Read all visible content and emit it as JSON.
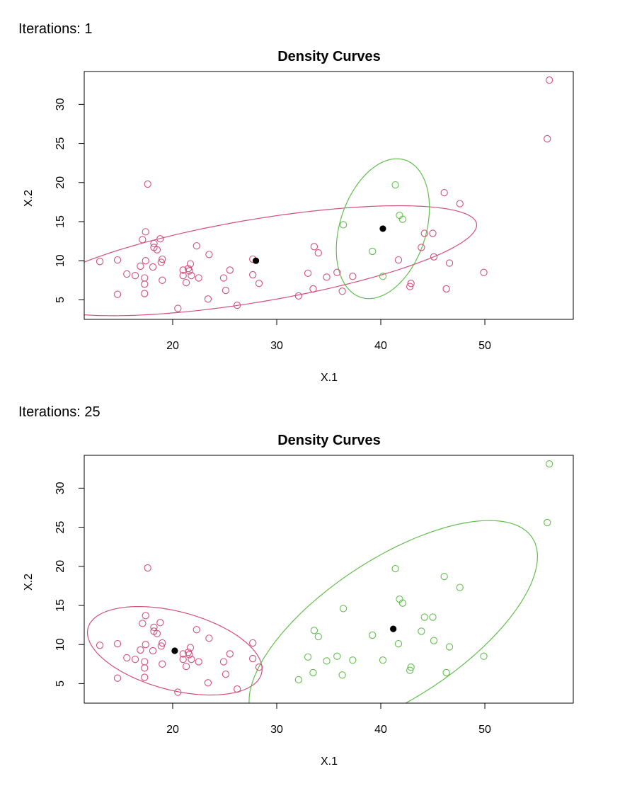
{
  "colors": {
    "cluster1": "#d2507a",
    "cluster2": "#63be4e",
    "center": "#000000"
  },
  "chart_data": [
    {
      "type": "scatter",
      "caption": "Iterations: 1",
      "title": "Density Curves",
      "xlabel": "X.1",
      "ylabel": "X.2",
      "xlim": [
        11.5,
        58.5
      ],
      "ylim": [
        2.5,
        34.2
      ],
      "xticks": [
        20,
        30,
        40,
        50
      ],
      "yticks": [
        5,
        10,
        15,
        20,
        25,
        30
      ],
      "grid": false,
      "series": [
        {
          "color": "#d2507a",
          "points": [
            [
              13.0,
              9.9
            ],
            [
              14.7,
              10.1
            ],
            [
              14.7,
              5.7
            ],
            [
              15.6,
              8.3
            ],
            [
              16.4,
              8.1
            ],
            [
              16.9,
              9.3
            ],
            [
              17.1,
              12.7
            ],
            [
              17.3,
              7.0
            ],
            [
              17.3,
              7.8
            ],
            [
              17.3,
              5.8
            ],
            [
              17.4,
              10.0
            ],
            [
              17.4,
              13.7
            ],
            [
              17.6,
              19.8
            ],
            [
              18.1,
              9.2
            ],
            [
              18.2,
              12.2
            ],
            [
              18.2,
              11.7
            ],
            [
              18.5,
              11.4
            ],
            [
              18.8,
              12.8
            ],
            [
              18.9,
              9.8
            ],
            [
              19.0,
              10.2
            ],
            [
              19.0,
              7.5
            ],
            [
              20.5,
              3.9
            ],
            [
              21.0,
              8.8
            ],
            [
              21.0,
              8.1
            ],
            [
              21.3,
              7.2
            ],
            [
              21.5,
              9.0
            ],
            [
              21.6,
              8.7
            ],
            [
              21.7,
              9.6
            ],
            [
              21.8,
              8.1
            ],
            [
              22.3,
              11.9
            ],
            [
              22.5,
              7.8
            ],
            [
              23.4,
              5.1
            ],
            [
              23.5,
              10.8
            ],
            [
              24.9,
              7.8
            ],
            [
              25.1,
              6.2
            ],
            [
              25.5,
              8.8
            ],
            [
              26.2,
              4.3
            ],
            [
              27.7,
              10.2
            ],
            [
              27.7,
              8.2
            ],
            [
              28.3,
              7.1
            ],
            [
              32.1,
              5.5
            ],
            [
              33.0,
              8.4
            ],
            [
              33.5,
              6.4
            ],
            [
              33.6,
              11.8
            ],
            [
              34.0,
              11.0
            ],
            [
              34.8,
              7.9
            ],
            [
              35.8,
              8.5
            ],
            [
              36.3,
              6.1
            ],
            [
              37.3,
              8.0
            ],
            [
              41.7,
              10.1
            ],
            [
              42.8,
              6.7
            ],
            [
              42.9,
              7.1
            ],
            [
              43.9,
              11.7
            ],
            [
              44.2,
              13.5
            ],
            [
              45.0,
              13.5
            ],
            [
              45.1,
              10.5
            ],
            [
              46.1,
              18.7
            ],
            [
              46.3,
              6.4
            ],
            [
              46.6,
              9.7
            ],
            [
              47.6,
              17.3
            ],
            [
              49.9,
              8.5
            ],
            [
              56.0,
              25.6
            ],
            [
              56.2,
              33.1
            ]
          ]
        },
        {
          "color": "#63be4e",
          "points": [
            [
              36.4,
              14.6
            ],
            [
              39.2,
              11.2
            ],
            [
              40.2,
              8.0
            ],
            [
              41.4,
              19.7
            ],
            [
              41.8,
              15.8
            ],
            [
              42.1,
              15.3
            ]
          ]
        }
      ],
      "centers": [
        [
          28.0,
          10.0
        ],
        [
          40.2,
          14.1
        ]
      ],
      "ellipses": [
        {
          "color": "#d2507a",
          "center": [
            28.0,
            10.0
          ],
          "cov": [
            [
              200,
              43
            ],
            [
              43,
              22
            ]
          ],
          "k": 1.5
        },
        {
          "color": "#63be4e",
          "center": [
            40.2,
            14.1
          ],
          "cov": [
            [
              5,
              3
            ],
            [
              3,
              20
            ]
          ],
          "k": 2.0
        }
      ]
    },
    {
      "type": "scatter",
      "caption": "Iterations: 25",
      "title": "Density Curves",
      "xlabel": "X.1",
      "ylabel": "X.2",
      "xlim": [
        11.5,
        58.5
      ],
      "ylim": [
        2.5,
        34.2
      ],
      "xticks": [
        20,
        30,
        40,
        50
      ],
      "yticks": [
        5,
        10,
        15,
        20,
        25,
        30
      ],
      "grid": false,
      "series": [
        {
          "color": "#d2507a",
          "points": [
            [
              13.0,
              9.9
            ],
            [
              14.7,
              10.1
            ],
            [
              14.7,
              5.7
            ],
            [
              15.6,
              8.3
            ],
            [
              16.4,
              8.1
            ],
            [
              16.9,
              9.3
            ],
            [
              17.1,
              12.7
            ],
            [
              17.3,
              7.0
            ],
            [
              17.3,
              7.8
            ],
            [
              17.3,
              5.8
            ],
            [
              17.4,
              10.0
            ],
            [
              17.4,
              13.7
            ],
            [
              17.6,
              19.8
            ],
            [
              18.1,
              9.2
            ],
            [
              18.2,
              12.2
            ],
            [
              18.2,
              11.7
            ],
            [
              18.5,
              11.4
            ],
            [
              18.8,
              12.8
            ],
            [
              18.9,
              9.8
            ],
            [
              19.0,
              10.2
            ],
            [
              19.0,
              7.5
            ],
            [
              20.5,
              3.9
            ],
            [
              21.0,
              8.8
            ],
            [
              21.0,
              8.1
            ],
            [
              21.3,
              7.2
            ],
            [
              21.5,
              9.0
            ],
            [
              21.6,
              8.7
            ],
            [
              21.7,
              9.6
            ],
            [
              21.8,
              8.1
            ],
            [
              22.3,
              11.9
            ],
            [
              22.5,
              7.8
            ],
            [
              23.4,
              5.1
            ],
            [
              23.5,
              10.8
            ],
            [
              24.9,
              7.8
            ],
            [
              25.1,
              6.2
            ],
            [
              25.5,
              8.8
            ],
            [
              26.2,
              4.3
            ],
            [
              27.7,
              10.2
            ],
            [
              27.7,
              8.2
            ],
            [
              28.3,
              7.1
            ]
          ]
        },
        {
          "color": "#63be4e",
          "points": [
            [
              32.1,
              5.5
            ],
            [
              33.0,
              8.4
            ],
            [
              33.5,
              6.4
            ],
            [
              33.6,
              11.8
            ],
            [
              34.0,
              11.0
            ],
            [
              34.8,
              7.9
            ],
            [
              35.8,
              8.5
            ],
            [
              36.3,
              6.1
            ],
            [
              36.4,
              14.6
            ],
            [
              37.3,
              8.0
            ],
            [
              39.2,
              11.2
            ],
            [
              40.2,
              8.0
            ],
            [
              41.4,
              19.7
            ],
            [
              41.7,
              10.1
            ],
            [
              41.8,
              15.8
            ],
            [
              42.1,
              15.3
            ],
            [
              42.8,
              6.7
            ],
            [
              42.9,
              7.1
            ],
            [
              43.9,
              11.7
            ],
            [
              44.2,
              13.5
            ],
            [
              45.0,
              13.5
            ],
            [
              45.1,
              10.5
            ],
            [
              46.1,
              18.7
            ],
            [
              46.3,
              6.4
            ],
            [
              46.6,
              9.7
            ],
            [
              47.6,
              17.3
            ],
            [
              49.9,
              8.5
            ],
            [
              56.0,
              25.6
            ],
            [
              56.2,
              33.1
            ]
          ]
        }
      ],
      "centers": [
        [
          20.2,
          9.2
        ],
        [
          41.2,
          12.0
        ]
      ],
      "ellipses": [
        {
          "color": "#d2507a",
          "center": [
            20.2,
            9.2
          ],
          "cov": [
            [
              17.6,
              -4.9
            ],
            [
              -4.9,
              8.0
            ]
          ],
          "k": 2.0
        },
        {
          "color": "#63be4e",
          "center": [
            41.2,
            12.0
          ],
          "cov": [
            [
              48,
              32
            ],
            [
              32,
              48
            ]
          ],
          "k": 2.0
        }
      ]
    }
  ]
}
